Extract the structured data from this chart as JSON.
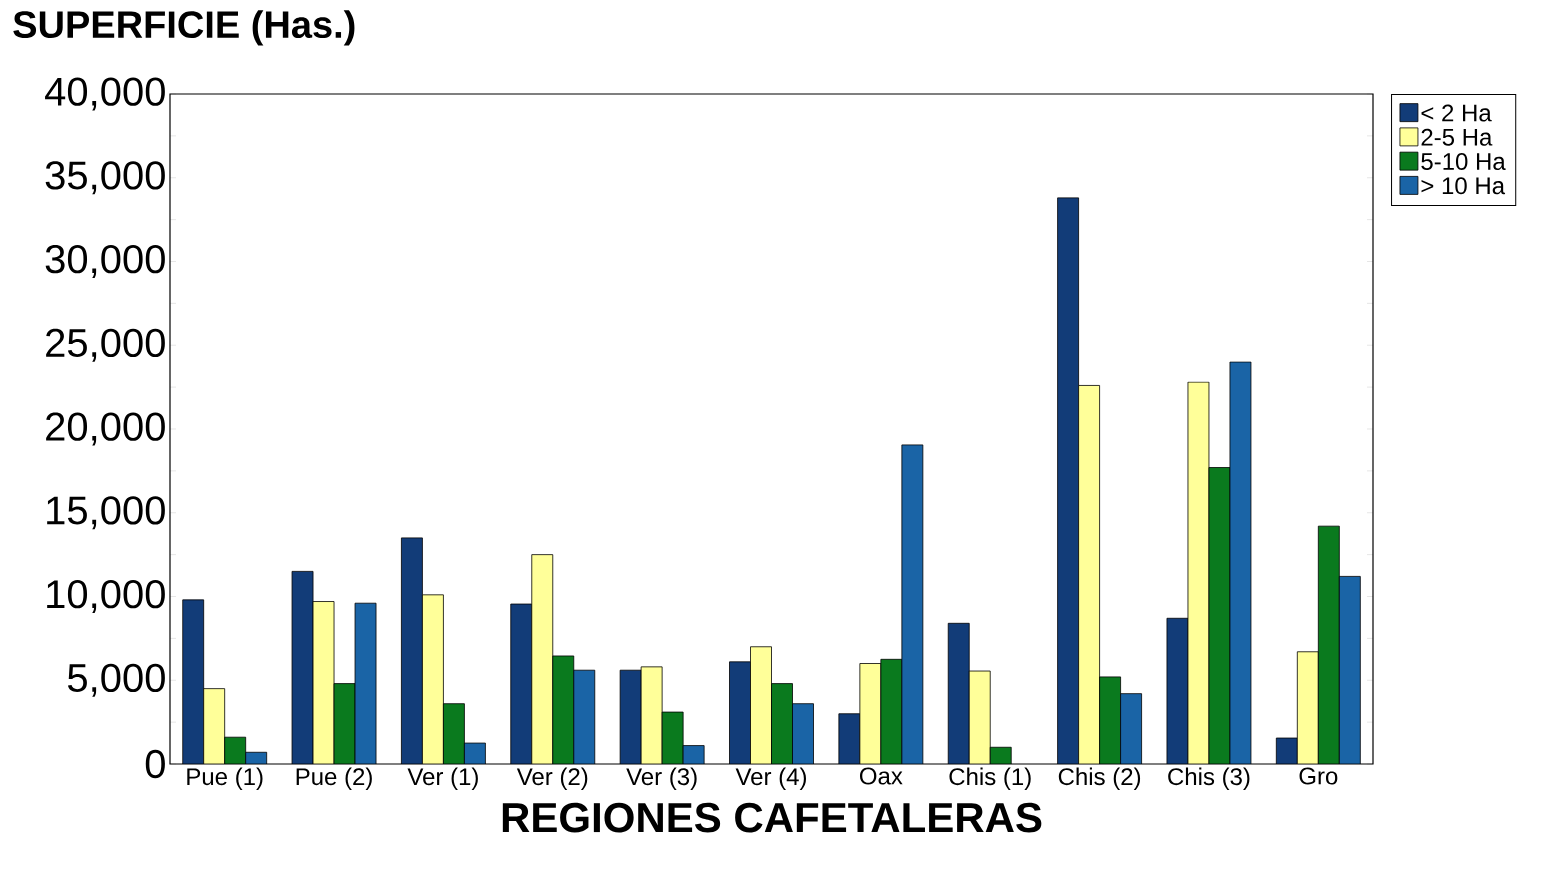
{
  "chart_data": {
    "type": "bar",
    "title": "SUPERFICIE (Has.)",
    "xlabel": "REGIONES CAFETALERAS",
    "categories": [
      "Pue (1)",
      "Pue (2)",
      "Ver (1)",
      "Ver (2)",
      "Ver (3)",
      "Ver (4)",
      "Oax",
      "Chis (1)",
      "Chis (2)",
      "Chis (3)",
      "Gro"
    ],
    "series": [
      {
        "name": "< 2 Ha",
        "color": "#123c78",
        "values": [
          9800,
          11500,
          13500,
          9550,
          5600,
          6100,
          3000,
          8400,
          33800,
          8700,
          1550
        ]
      },
      {
        "name": "2-5 Ha",
        "color": "#ffff99",
        "values": [
          4500,
          9700,
          10100,
          12500,
          5800,
          7000,
          6000,
          5550,
          22600,
          22800,
          6700
        ]
      },
      {
        "name": "5-10 Ha",
        "color": "#0a7a1e",
        "values": [
          1600,
          4800,
          3600,
          6450,
          3100,
          4800,
          6250,
          1000,
          5200,
          17700,
          14200
        ]
      },
      {
        "name": "> 10 Ha",
        "color": "#1a64a6",
        "values": [
          700,
          9600,
          1250,
          5600,
          1100,
          3600,
          19050,
          null,
          4200,
          24000,
          11200
        ]
      }
    ],
    "ylim": [
      0,
      40000
    ],
    "yticks": [
      {
        "value": 0,
        "label": "0"
      },
      {
        "value": 2500,
        "label": null
      },
      {
        "value": 5000,
        "label": "5,000"
      },
      {
        "value": 7500,
        "label": null
      },
      {
        "value": 10000,
        "label": "10,000"
      },
      {
        "value": 12500,
        "label": null
      },
      {
        "value": 15000,
        "label": "15,000"
      },
      {
        "value": 17500,
        "label": null
      },
      {
        "value": 20000,
        "label": "20,000"
      },
      {
        "value": 22500,
        "label": null
      },
      {
        "value": 25000,
        "label": "25,000"
      },
      {
        "value": 27500,
        "label": null
      },
      {
        "value": 30000,
        "label": "30,000"
      },
      {
        "value": 32500,
        "label": null
      },
      {
        "value": 35000,
        "label": "35,000"
      },
      {
        "value": 37500,
        "label": null
      },
      {
        "value": 40000,
        "label": "40,000"
      }
    ],
    "grid": false,
    "legend": "right"
  }
}
